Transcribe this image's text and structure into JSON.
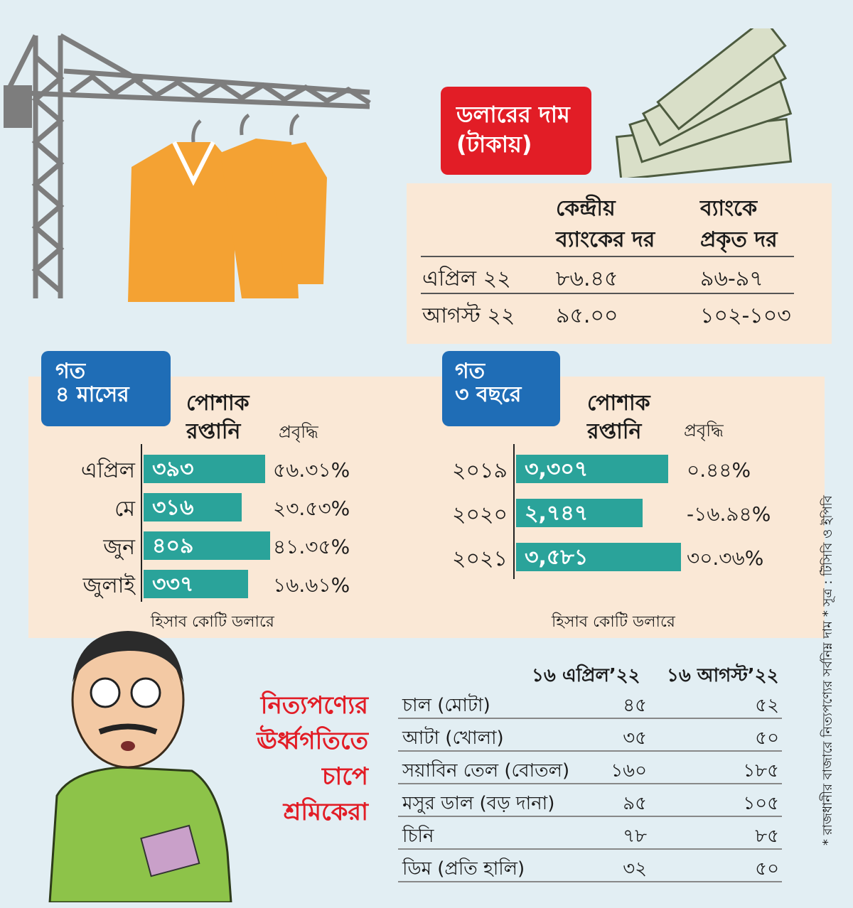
{
  "dollar": {
    "header": "ডলারের দাম\n(টাকায়)",
    "col_central": "কেন্দ্রীয়\nব্যাংকের দর",
    "col_bank": "ব্যাংকে\nপ্রকৃত দর",
    "rows": [
      {
        "label": "এপ্রিল ২২",
        "central": "৮৬.৪৫",
        "bank": "৯৬-৯৭"
      },
      {
        "label": "আগস্ট ২২",
        "central": "৯৫.০০",
        "bank": "১০২-১০৩"
      }
    ]
  },
  "months_panel": {
    "badge": "গত\n৪ মাসের",
    "col_export": "পোশাক\nরপ্তানি",
    "col_growth": "প্রবৃদ্ধি",
    "note": "হিসাব কোটি ডলারে"
  },
  "years_panel": {
    "badge": "গত\n৩ বছরে",
    "col_export": "পোশাক\nরপ্তানি",
    "col_growth": "প্রবৃদ্ধি",
    "note": "হিসাব কোটি ডলারে"
  },
  "chart_data": [
    {
      "type": "bar",
      "categories": [
        "এপ্রিল",
        "মে",
        "জুন",
        "জুলাই"
      ],
      "values": [
        393,
        316,
        409,
        337
      ],
      "value_labels": [
        "৩৯৩",
        "৩১৬",
        "৪০৯",
        "৩৩৭"
      ],
      "growth": [
        "৫৬.৩১%",
        "২৩.৫৩%",
        "৪১.৩৫%",
        "১৬.৬১%"
      ]
    },
    {
      "type": "bar",
      "categories": [
        "২০১৯",
        "২০২০",
        "২০২১"
      ],
      "values": [
        3307,
        2747,
        3581
      ],
      "value_labels": [
        "৩,৩০৭",
        "২,৭৪৭",
        "৩,৫৮১"
      ],
      "growth": [
        "০.৪৪%",
        "-১৬.৯৪%",
        "৩০.৩৬%"
      ]
    }
  ],
  "prices": {
    "headline": "নিত্যপণ্যের\nঊর্ধ্বগতিতে\nচাপে\nশ্রমিকেরা",
    "col_apr": "১৬ এপ্রিল’২২",
    "col_aug": "১৬ আগস্ট’২২",
    "rows": [
      {
        "item": "চাল (মোটা)",
        "apr": "৪৫",
        "aug": "৫২"
      },
      {
        "item": "আটা (খোলা)",
        "apr": "৩৫",
        "aug": "৫০"
      },
      {
        "item": "সয়াবিন তেল (বোতল)",
        "apr": "১৬০",
        "aug": "১৮৫"
      },
      {
        "item": "মসুর ডাল (বড় দানা)",
        "apr": "৯৫",
        "aug": "১০৫"
      },
      {
        "item": "চিনি",
        "apr": "৭৮",
        "aug": "৮৫"
      },
      {
        "item": "ডিম (প্রতি হালি)",
        "apr": "৩২",
        "aug": "৫০"
      }
    ]
  },
  "footnote": "* রাজধানীর বাজারে নিত্যপণ্যের সর্বনিম্ন দাম * সূত্র : টিসিবি ও ইপিবি",
  "colors": {
    "bar": "#2aa39a",
    "red": "#e21d26",
    "blue": "#1f6db6",
    "panel": "#fae8d6",
    "background": "#e2eef3"
  }
}
